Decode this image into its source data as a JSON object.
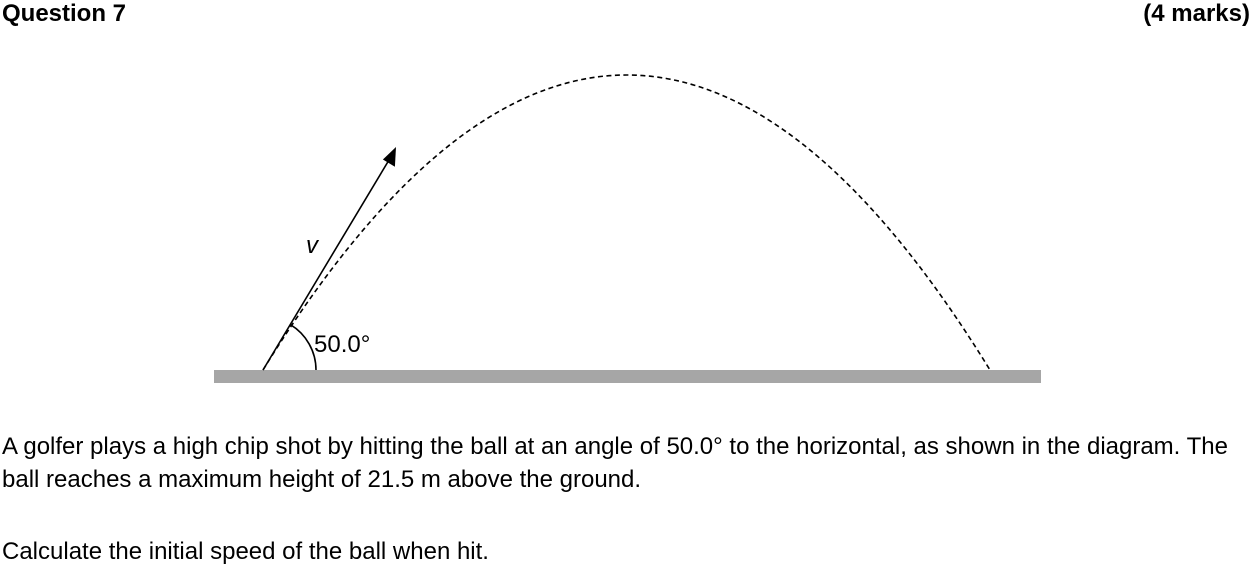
{
  "header": {
    "title": "Question 7",
    "marks": "(4 marks)"
  },
  "diagram": {
    "velocity_label": "v",
    "angle_label": "50.0°",
    "colors": {
      "ground": "#a6a6a6",
      "lines": "#000000"
    }
  },
  "body": {
    "paragraph_1": "A golfer plays a high chip shot by hitting the ball at an angle of 50.0° to the horizontal, as shown in the diagram. The ball reaches a maximum height of 21.5 m above the ground.",
    "paragraph_2": "Calculate the initial speed of the ball when hit."
  }
}
